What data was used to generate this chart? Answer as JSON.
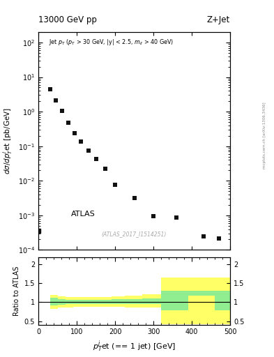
{
  "title_left": "13000 GeV pp",
  "title_right": "Z+Jet",
  "watermark": "(ATLAS_2017_I1514251)",
  "side_label": "mcplots.cern.ch [arXiv:1306.3436]",
  "xlabel": "$p_{T}^{j}$et (== 1 jet) [GeV]",
  "ylabel": "$d\\sigma/dp_{T}^{j}$et [pb/GeV]",
  "ylabel_ratio": "Ratio to ATLAS",
  "legend_label": "ATLAS",
  "data_x": [
    30,
    46,
    62,
    78,
    94,
    110,
    130,
    150,
    175,
    200,
    250,
    300,
    360,
    430,
    470
  ],
  "data_y": [
    4.5,
    2.1,
    1.05,
    0.48,
    0.24,
    0.135,
    0.075,
    0.043,
    0.022,
    0.0078,
    0.0032,
    0.00095,
    0.00085,
    0.00025,
    0.00021
  ],
  "xlim": [
    0,
    500
  ],
  "ylim_log": [
    0.0001,
    200
  ],
  "ratio_x_edges": [
    30,
    50,
    70,
    90,
    110,
    135,
    160,
    190,
    225,
    270,
    320,
    390,
    460,
    500
  ],
  "ratio_green_lo": [
    0.92,
    0.94,
    0.95,
    0.96,
    0.96,
    0.96,
    0.96,
    0.96,
    0.96,
    0.96,
    0.78,
    1.18,
    0.78
  ],
  "ratio_green_hi": [
    1.12,
    1.09,
    1.07,
    1.07,
    1.07,
    1.07,
    1.07,
    1.08,
    1.09,
    1.11,
    1.3,
    1.3,
    1.3
  ],
  "ratio_yellow_lo": [
    0.82,
    0.86,
    0.87,
    0.88,
    0.88,
    0.88,
    0.88,
    0.88,
    0.87,
    0.87,
    0.42,
    0.42,
    0.42
  ],
  "ratio_yellow_hi": [
    1.2,
    1.16,
    1.14,
    1.13,
    1.13,
    1.13,
    1.14,
    1.16,
    1.18,
    1.22,
    1.65,
    1.65,
    1.65
  ],
  "ratio_ylim": [
    0.4,
    2.2
  ],
  "ratio_yticks": [
    0.5,
    1.0,
    1.5,
    2.0
  ],
  "color_green": "#90EE90",
  "color_yellow": "#FFFF66",
  "marker_color": "#111111",
  "marker_size": 4.5,
  "bg_color": "#ffffff"
}
